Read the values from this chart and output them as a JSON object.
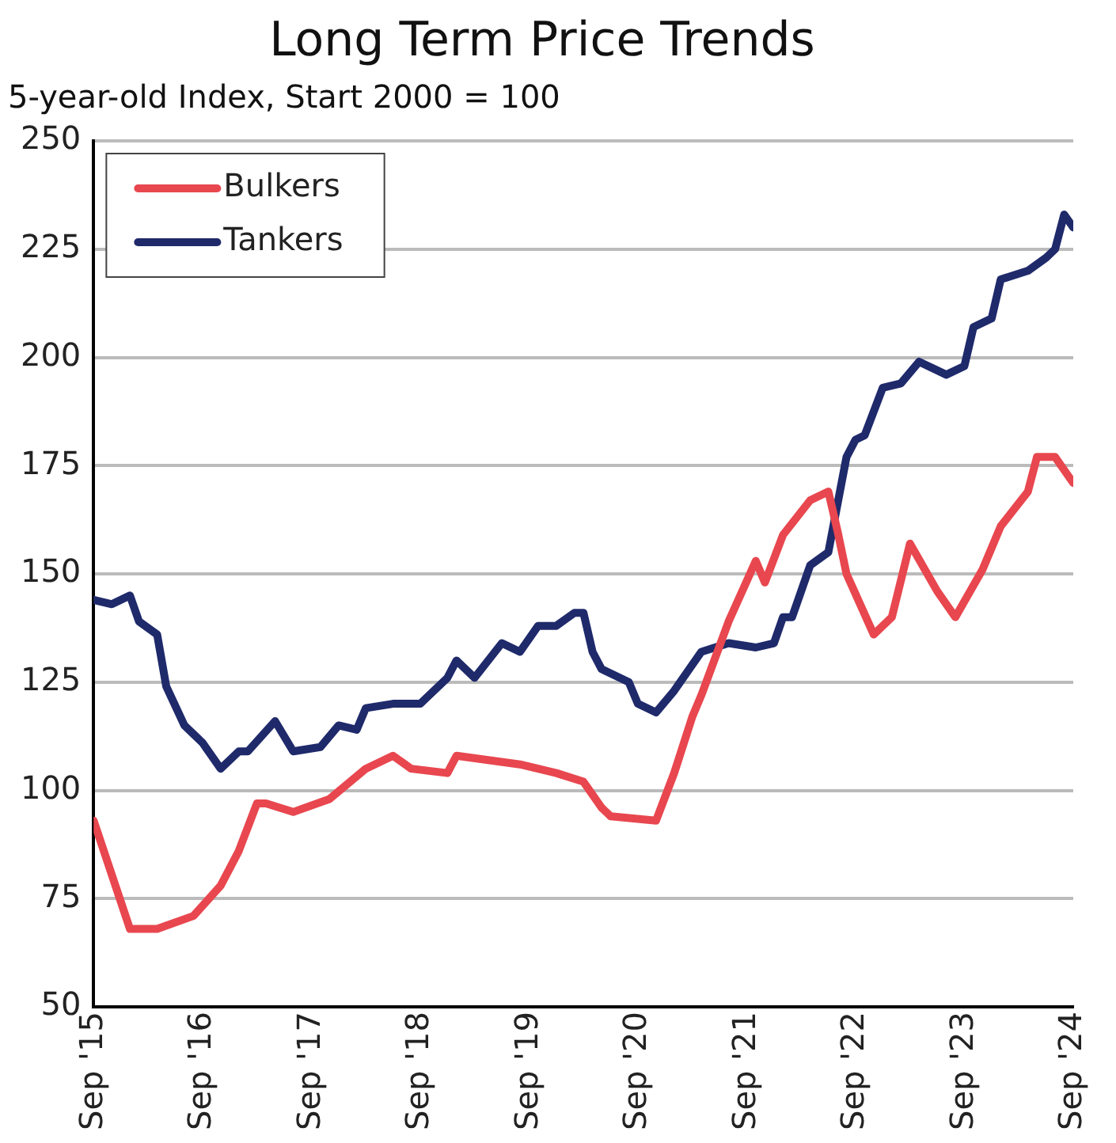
{
  "chart_data": {
    "type": "line",
    "title": "Long Term Price Trends",
    "subtitle": "5-year-old Index, Start 2000 = 100",
    "xlim": [
      "2015-09",
      "2024-09"
    ],
    "xticks": [
      {
        "value": "2015-09",
        "label": "Sep '15"
      },
      {
        "value": "2016-09",
        "label": "Sep '16"
      },
      {
        "value": "2017-09",
        "label": "Sep '17"
      },
      {
        "value": "2018-09",
        "label": "Sep '18"
      },
      {
        "value": "2019-09",
        "label": "Sep '19"
      },
      {
        "value": "2020-09",
        "label": "Sep '20"
      },
      {
        "value": "2021-09",
        "label": "Sep '21"
      },
      {
        "value": "2022-09",
        "label": "Sep '22"
      },
      {
        "value": "2023-09",
        "label": "Sep '23"
      },
      {
        "value": "2024-09",
        "label": "Sep '24"
      }
    ],
    "ylim": [
      50,
      250
    ],
    "yticks": [
      50,
      75,
      100,
      125,
      150,
      175,
      200,
      225,
      250
    ],
    "grid": "y",
    "legend": "top left",
    "marker": "none",
    "line_style": "solid",
    "series": [
      {
        "name": "Bulkers",
        "color": "#e8474f",
        "x": [
          "2015-09",
          "2016-01",
          "2016-04",
          "2016-08",
          "2016-11",
          "2017-01",
          "2017-03",
          "2017-04",
          "2017-07",
          "2017-11",
          "2018-03",
          "2018-06",
          "2018-08",
          "2018-12",
          "2019-01",
          "2019-08",
          "2019-12",
          "2020-03",
          "2020-05",
          "2020-06",
          "2020-11",
          "2021-01",
          "2021-03",
          "2021-04",
          "2021-07",
          "2021-10",
          "2021-11",
          "2022-01",
          "2022-04",
          "2022-06",
          "2022-07",
          "2022-08",
          "2022-11",
          "2023-01",
          "2023-03",
          "2023-06",
          "2023-08",
          "2023-11",
          "2024-01",
          "2024-04",
          "2024-05",
          "2024-07",
          "2024-09"
        ],
        "values": [
          93,
          68,
          68,
          71,
          78,
          86,
          97,
          97,
          95,
          98,
          105,
          108,
          105,
          104,
          108,
          106,
          104,
          102,
          96,
          94,
          93,
          104,
          117,
          122,
          139,
          153,
          148,
          159,
          167,
          169,
          160,
          150,
          136,
          140,
          157,
          146,
          140,
          151,
          161,
          169,
          177,
          177,
          171
        ]
      },
      {
        "name": "Tankers",
        "color": "#1f2a6b",
        "x": [
          "2015-09",
          "2015-11",
          "2016-01",
          "2016-02",
          "2016-04",
          "2016-05",
          "2016-07",
          "2016-09",
          "2016-11",
          "2017-01",
          "2017-02",
          "2017-05",
          "2017-07",
          "2017-10",
          "2017-12",
          "2018-02",
          "2018-03",
          "2018-06",
          "2018-09",
          "2018-12",
          "2019-01",
          "2019-03",
          "2019-06",
          "2019-08",
          "2019-10",
          "2019-12",
          "2020-02",
          "2020-03",
          "2020-04",
          "2020-05",
          "2020-08",
          "2020-09",
          "2020-11",
          "2021-01",
          "2021-04",
          "2021-07",
          "2021-10",
          "2021-12",
          "2022-01",
          "2022-02",
          "2022-04",
          "2022-06",
          "2022-08",
          "2022-09",
          "2022-10",
          "2022-12",
          "2023-02",
          "2023-04",
          "2023-07",
          "2023-09",
          "2023-10",
          "2023-12",
          "2024-01",
          "2024-04",
          "2024-06",
          "2024-07",
          "2024-08",
          "2024-09"
        ],
        "values": [
          144,
          143,
          145,
          139,
          136,
          124,
          115,
          111,
          105,
          109,
          109,
          116,
          109,
          110,
          115,
          114,
          119,
          120,
          120,
          126,
          130,
          126,
          134,
          132,
          138,
          138,
          141,
          141,
          132,
          128,
          125,
          120,
          118,
          123,
          132,
          134,
          133,
          134,
          140,
          140,
          152,
          155,
          177,
          181,
          182,
          193,
          194,
          199,
          196,
          198,
          207,
          209,
          218,
          220,
          223,
          225,
          233,
          230
        ]
      }
    ]
  }
}
